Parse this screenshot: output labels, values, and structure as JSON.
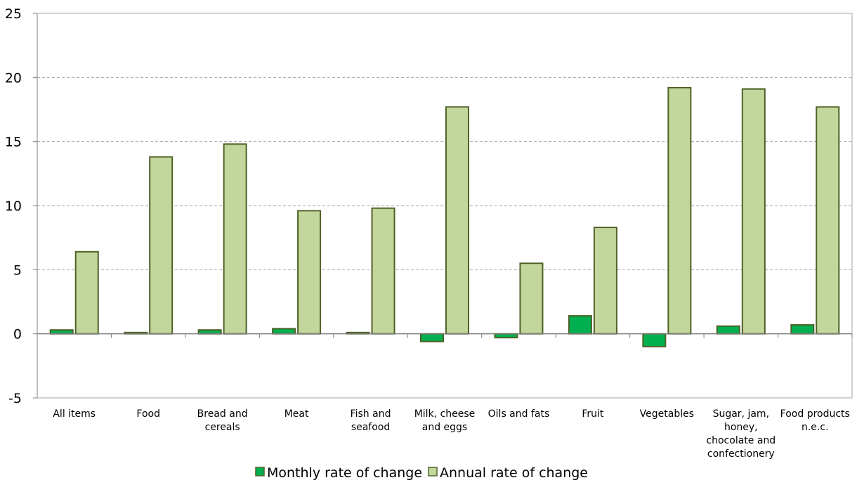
{
  "chart_data": {
    "type": "bar",
    "categories": [
      [
        "All items"
      ],
      [
        "Food"
      ],
      [
        "Bread and",
        "cereals"
      ],
      [
        "Meat"
      ],
      [
        "Fish and",
        "seafood"
      ],
      [
        "Milk, cheese",
        "and eggs"
      ],
      [
        "Oils and fats"
      ],
      [
        "Fruit"
      ],
      [
        "Vegetables"
      ],
      [
        "Sugar, jam,",
        "honey,",
        "chocolate and",
        "confectionery"
      ],
      [
        "Food products",
        "n.e.c."
      ]
    ],
    "series": [
      {
        "name": "Monthly rate of change",
        "color": "#00b050",
        "border": "#4f6228",
        "values": [
          0.3,
          0.1,
          0.3,
          0.4,
          0.1,
          -0.6,
          -0.3,
          1.4,
          -1.0,
          0.6,
          0.7
        ]
      },
      {
        "name": "Annual rate of change",
        "color": "#c3d69b",
        "border": "#4f6228",
        "values": [
          6.4,
          13.8,
          14.8,
          9.6,
          9.8,
          17.7,
          5.5,
          8.3,
          19.2,
          19.1,
          17.7
        ]
      }
    ],
    "ylim": [
      -5,
      25
    ],
    "yticks": [
      -5,
      0,
      5,
      10,
      15,
      20,
      25
    ],
    "grid": true,
    "legend_position": "bottom"
  }
}
